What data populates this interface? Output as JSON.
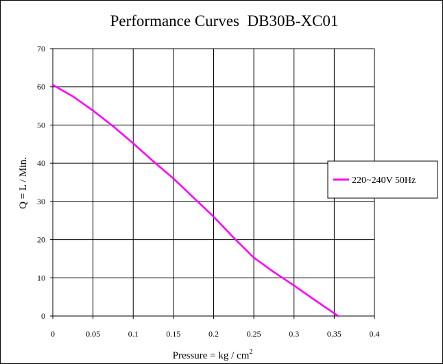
{
  "chart_data": {
    "type": "line",
    "title": "Performance Curves  DB30B-XC01",
    "xlabel": "Pressure = kg / cm",
    "xlabel_superscript": "2",
    "ylabel": "Q = L / Min.",
    "xlim": [
      0,
      0.4
    ],
    "ylim": [
      0,
      70
    ],
    "xticks": [
      0,
      0.05,
      0.1,
      0.15,
      0.2,
      0.25,
      0.3,
      0.35,
      0.4
    ],
    "xtick_labels": [
      "0",
      "0.05",
      "0.1",
      "0.15",
      "0.2",
      "0.25",
      "0.3",
      "0.35",
      "0.4"
    ],
    "yticks": [
      0,
      10,
      20,
      30,
      40,
      50,
      60,
      70
    ],
    "ytick_labels": [
      "0",
      "10",
      "20",
      "30",
      "40",
      "50",
      "60",
      "70"
    ],
    "grid": true,
    "legend_position": "right",
    "series": [
      {
        "name": "220~240V 50Hz",
        "color": "#ff00ff",
        "x": [
          0,
          0.025,
          0.05,
          0.075,
          0.1,
          0.125,
          0.15,
          0.175,
          0.2,
          0.225,
          0.25,
          0.275,
          0.3,
          0.325,
          0.35,
          0.355
        ],
        "y": [
          60.5,
          57.5,
          53.8,
          49.7,
          45.2,
          40.5,
          36.0,
          31.0,
          26.0,
          20.5,
          15.3,
          11.5,
          8.0,
          4.3,
          0.7,
          0
        ]
      }
    ]
  }
}
